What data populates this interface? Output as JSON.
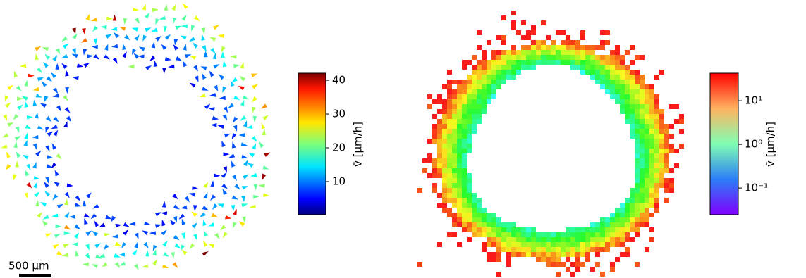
{
  "chart_data": [
    {
      "type": "quiver",
      "scale_bar": "500 μm",
      "colorbar": {
        "label": "v̄ [μm/h]",
        "scale": "linear",
        "lim": [
          0.2,
          42.1
        ],
        "ticks": [
          10,
          20,
          30,
          40
        ]
      }
    },
    {
      "type": "heatmap",
      "colorbar": {
        "label": "v̄ [μm/h]",
        "scale": "log",
        "lim": [
          0.0245,
          42.7
        ],
        "ticks": [
          {
            "value": 0.1,
            "label": "10⁻¹"
          },
          {
            "value": 1,
            "label": "10⁰"
          },
          {
            "value": 10,
            "label": "10¹"
          }
        ]
      }
    }
  ]
}
